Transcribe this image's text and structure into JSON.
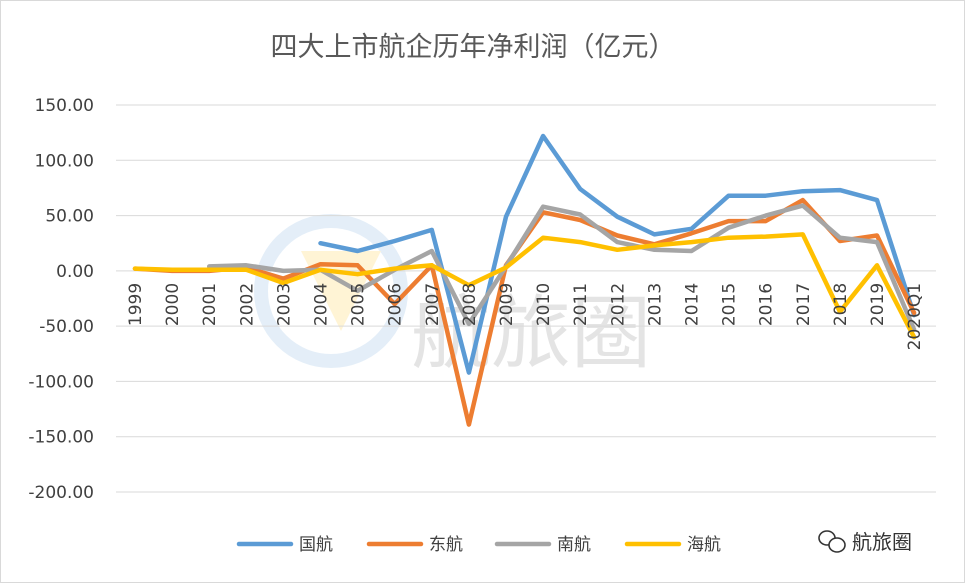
{
  "watermark_label": "航旅圈",
  "chart_data": {
    "type": "line",
    "title": "四大上市航企历年净利润（亿元）",
    "ylim": [
      -200,
      150
    ],
    "yticks": [
      "150.00",
      "100.00",
      "50.00",
      "0.00",
      "-50.00",
      "-100.00",
      "-150.00",
      "-200.00"
    ],
    "ytick_values": [
      150,
      100,
      50,
      0,
      -50,
      -100,
      -150,
      -200
    ],
    "grid": true,
    "legend_position": "bottom",
    "categories": [
      "1999",
      "2000",
      "2001",
      "2002",
      "2003",
      "2004",
      "2005",
      "2006",
      "2007",
      "2008",
      "2009",
      "2010",
      "2011",
      "2012",
      "2013",
      "2014",
      "2015",
      "2016",
      "2017",
      "2018",
      "2019",
      "2020Q1"
    ],
    "series": [
      {
        "name": "国航",
        "color": "#5B9BD5",
        "values": [
          null,
          null,
          null,
          null,
          null,
          25,
          18,
          27,
          37,
          -92,
          49,
          122,
          74,
          49,
          33,
          38,
          68,
          68,
          72,
          73,
          64,
          -40
        ]
      },
      {
        "name": "东航",
        "color": "#ED7D31",
        "values": [
          2,
          0,
          0,
          3,
          -7,
          6,
          5,
          -30,
          5,
          -139,
          5,
          53,
          46,
          32,
          24,
          34,
          45,
          45,
          64,
          27,
          32,
          -38
        ]
      },
      {
        "name": "南航",
        "color": "#A5A5A5",
        "values": [
          null,
          null,
          4,
          5,
          0,
          1,
          -18,
          1,
          18,
          -48,
          4,
          58,
          51,
          26,
          19,
          18,
          39,
          50,
          59,
          30,
          26,
          -53
        ]
      },
      {
        "name": "海航",
        "color": "#FFC000",
        "values": [
          2,
          1,
          1,
          1,
          -11,
          1,
          -3,
          2,
          5,
          -13,
          3,
          30,
          26,
          19,
          23,
          26,
          30,
          31,
          33,
          -37,
          5,
          -60
        ]
      }
    ]
  }
}
